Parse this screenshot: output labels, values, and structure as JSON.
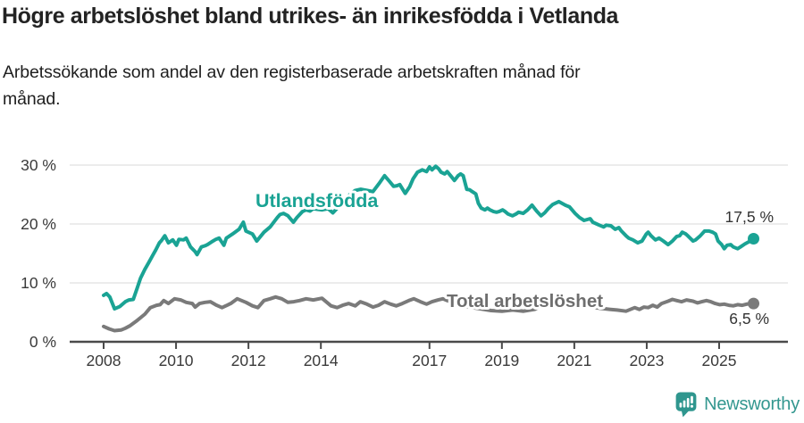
{
  "header": {
    "title": "Högre arbetslöshet bland utrikes- än inrikesfödda i Vetlanda",
    "subtitle": "Arbetssökande som andel av den registerbaserade arbetskraften månad för månad."
  },
  "chart_data": {
    "type": "line",
    "title": "Högre arbetslöshet bland utrikes- än inrikesfödda i Vetlanda",
    "subtitle": "Arbetssökande som andel av den registerbaserade arbetskraften månad för månad.",
    "grid": true,
    "x_axis": {
      "ticks": [
        2008,
        2010,
        2012,
        2014,
        2017,
        2019,
        2021,
        2023,
        2025
      ],
      "labels": [
        "2008",
        "2010",
        "2012",
        "2014",
        "2017",
        "2019",
        "2021",
        "2023",
        "2025"
      ],
      "range": [
        2007.7,
        2026.2
      ]
    },
    "y_axis": {
      "ticks": [
        0,
        10,
        20,
        30
      ],
      "labels": [
        "0 %",
        "10 %",
        "20 %",
        "30 %"
      ],
      "range": [
        0,
        31
      ]
    },
    "series": [
      {
        "name": "Utlandsfödda",
        "color": "#1aa394",
        "label_color": "#1aa394",
        "end_label": "17,5 %",
        "end_value": 17.5,
        "points": [
          [
            2008.0,
            7.9
          ],
          [
            2008.08,
            8.2
          ],
          [
            2008.17,
            7.6
          ],
          [
            2008.3,
            5.6
          ],
          [
            2008.45,
            6.0
          ],
          [
            2008.6,
            6.8
          ],
          [
            2008.7,
            7.1
          ],
          [
            2008.82,
            7.2
          ],
          [
            2008.92,
            9.0
          ],
          [
            2009.02,
            10.8
          ],
          [
            2009.14,
            12.3
          ],
          [
            2009.25,
            13.5
          ],
          [
            2009.34,
            14.5
          ],
          [
            2009.44,
            15.6
          ],
          [
            2009.54,
            16.8
          ],
          [
            2009.6,
            17.2
          ],
          [
            2009.69,
            18.0
          ],
          [
            2009.79,
            16.8
          ],
          [
            2009.91,
            17.3
          ],
          [
            2010.01,
            16.4
          ],
          [
            2010.08,
            17.4
          ],
          [
            2010.21,
            17.3
          ],
          [
            2010.28,
            17.6
          ],
          [
            2010.4,
            16.1
          ],
          [
            2010.53,
            15.3
          ],
          [
            2010.58,
            14.8
          ],
          [
            2010.7,
            16.1
          ],
          [
            2010.8,
            16.3
          ],
          [
            2010.87,
            16.5
          ],
          [
            2011.02,
            17.1
          ],
          [
            2011.1,
            17.4
          ],
          [
            2011.19,
            17.6
          ],
          [
            2011.32,
            16.4
          ],
          [
            2011.39,
            17.6
          ],
          [
            2011.56,
            18.3
          ],
          [
            2011.74,
            19.1
          ],
          [
            2011.86,
            20.3
          ],
          [
            2011.93,
            18.8
          ],
          [
            2012.11,
            18.3
          ],
          [
            2012.23,
            17.1
          ],
          [
            2012.43,
            18.6
          ],
          [
            2012.6,
            19.5
          ],
          [
            2012.8,
            21.1
          ],
          [
            2012.87,
            21.6
          ],
          [
            2012.97,
            21.8
          ],
          [
            2013.09,
            21.4
          ],
          [
            2013.24,
            20.3
          ],
          [
            2013.34,
            21.1
          ],
          [
            2013.49,
            22.1
          ],
          [
            2013.59,
            22.4
          ],
          [
            2013.7,
            22.2
          ],
          [
            2013.79,
            22.6
          ],
          [
            2013.9,
            22.5
          ],
          [
            2014.03,
            22.4
          ],
          [
            2014.2,
            22.6
          ],
          [
            2014.33,
            21.9
          ],
          [
            2014.5,
            23.0
          ],
          [
            2014.65,
            24.0
          ],
          [
            2014.8,
            25.0
          ],
          [
            2014.95,
            25.7
          ],
          [
            2015.1,
            25.9
          ],
          [
            2015.27,
            25.7
          ],
          [
            2015.44,
            25.5
          ],
          [
            2015.6,
            26.8
          ],
          [
            2015.76,
            28.2
          ],
          [
            2015.9,
            27.2
          ],
          [
            2016.01,
            26.4
          ],
          [
            2016.1,
            26.5
          ],
          [
            2016.18,
            26.7
          ],
          [
            2016.33,
            25.2
          ],
          [
            2016.45,
            26.3
          ],
          [
            2016.55,
            27.7
          ],
          [
            2016.67,
            28.8
          ],
          [
            2016.8,
            29.2
          ],
          [
            2016.92,
            28.9
          ],
          [
            2017.0,
            29.7
          ],
          [
            2017.07,
            29.2
          ],
          [
            2017.17,
            29.8
          ],
          [
            2017.25,
            29.4
          ],
          [
            2017.32,
            28.8
          ],
          [
            2017.42,
            28.5
          ],
          [
            2017.49,
            28.9
          ],
          [
            2017.61,
            28.0
          ],
          [
            2017.69,
            27.4
          ],
          [
            2017.79,
            28.2
          ],
          [
            2017.86,
            28.5
          ],
          [
            2017.93,
            28.2
          ],
          [
            2018.03,
            25.9
          ],
          [
            2018.11,
            25.8
          ],
          [
            2018.18,
            25.5
          ],
          [
            2018.28,
            25.1
          ],
          [
            2018.35,
            23.5
          ],
          [
            2018.43,
            22.7
          ],
          [
            2018.53,
            22.4
          ],
          [
            2018.6,
            22.7
          ],
          [
            2018.67,
            22.4
          ],
          [
            2018.77,
            22.1
          ],
          [
            2018.85,
            22.0
          ],
          [
            2018.92,
            22.1
          ],
          [
            2019.02,
            22.4
          ],
          [
            2019.09,
            22.1
          ],
          [
            2019.17,
            21.7
          ],
          [
            2019.29,
            21.4
          ],
          [
            2019.39,
            21.7
          ],
          [
            2019.46,
            22.0
          ],
          [
            2019.59,
            21.8
          ],
          [
            2019.71,
            22.4
          ],
          [
            2019.83,
            23.2
          ],
          [
            2019.96,
            22.2
          ],
          [
            2020.08,
            21.4
          ],
          [
            2020.18,
            21.9
          ],
          [
            2020.28,
            22.6
          ],
          [
            2020.4,
            23.3
          ],
          [
            2020.57,
            23.8
          ],
          [
            2020.75,
            23.2
          ],
          [
            2020.87,
            22.9
          ],
          [
            2021.02,
            21.8
          ],
          [
            2021.14,
            21.1
          ],
          [
            2021.27,
            20.6
          ],
          [
            2021.44,
            20.9
          ],
          [
            2021.51,
            20.3
          ],
          [
            2021.69,
            19.8
          ],
          [
            2021.81,
            19.5
          ],
          [
            2021.88,
            19.8
          ],
          [
            2022.01,
            19.7
          ],
          [
            2022.13,
            19.1
          ],
          [
            2022.23,
            19.4
          ],
          [
            2022.3,
            18.8
          ],
          [
            2022.43,
            18.0
          ],
          [
            2022.5,
            17.6
          ],
          [
            2022.62,
            17.3
          ],
          [
            2022.75,
            16.8
          ],
          [
            2022.87,
            17.1
          ],
          [
            2022.99,
            18.3
          ],
          [
            2023.04,
            18.6
          ],
          [
            2023.12,
            18.0
          ],
          [
            2023.24,
            17.3
          ],
          [
            2023.34,
            17.6
          ],
          [
            2023.46,
            17.1
          ],
          [
            2023.59,
            16.5
          ],
          [
            2023.71,
            17.1
          ],
          [
            2023.83,
            17.9
          ],
          [
            2023.91,
            18.0
          ],
          [
            2023.98,
            18.6
          ],
          [
            2024.08,
            18.3
          ],
          [
            2024.15,
            17.9
          ],
          [
            2024.28,
            17.1
          ],
          [
            2024.35,
            17.3
          ],
          [
            2024.48,
            18.0
          ],
          [
            2024.6,
            18.8
          ],
          [
            2024.72,
            18.8
          ],
          [
            2024.82,
            18.6
          ],
          [
            2024.9,
            18.3
          ],
          [
            2024.97,
            17.1
          ],
          [
            2025.07,
            16.5
          ],
          [
            2025.14,
            15.8
          ],
          [
            2025.22,
            16.4
          ],
          [
            2025.32,
            16.5
          ],
          [
            2025.39,
            16.1
          ],
          [
            2025.51,
            15.8
          ],
          [
            2025.59,
            16.1
          ],
          [
            2025.71,
            16.6
          ],
          [
            2025.83,
            17.0
          ],
          [
            2025.95,
            17.5
          ]
        ]
      },
      {
        "name": "Total arbetslöshet",
        "color": "#7a7a7a",
        "label_color": "#6e6e6e",
        "end_label": "6,5 %",
        "end_value": 6.5,
        "points": [
          [
            2008.0,
            2.6
          ],
          [
            2008.15,
            2.2
          ],
          [
            2008.3,
            1.9
          ],
          [
            2008.48,
            2.0
          ],
          [
            2008.6,
            2.3
          ],
          [
            2008.72,
            2.7
          ],
          [
            2008.9,
            3.5
          ],
          [
            2009.14,
            4.7
          ],
          [
            2009.29,
            5.8
          ],
          [
            2009.46,
            6.2
          ],
          [
            2009.56,
            6.3
          ],
          [
            2009.66,
            7.0
          ],
          [
            2009.79,
            6.5
          ],
          [
            2009.96,
            7.3
          ],
          [
            2010.13,
            7.1
          ],
          [
            2010.28,
            6.7
          ],
          [
            2010.45,
            6.5
          ],
          [
            2010.53,
            5.9
          ],
          [
            2010.65,
            6.5
          ],
          [
            2010.8,
            6.7
          ],
          [
            2010.95,
            6.8
          ],
          [
            2011.12,
            6.2
          ],
          [
            2011.27,
            5.8
          ],
          [
            2011.51,
            6.5
          ],
          [
            2011.69,
            7.3
          ],
          [
            2011.93,
            6.7
          ],
          [
            2012.11,
            6.1
          ],
          [
            2012.26,
            5.8
          ],
          [
            2012.43,
            7.0
          ],
          [
            2012.6,
            7.3
          ],
          [
            2012.75,
            7.6
          ],
          [
            2012.92,
            7.3
          ],
          [
            2013.09,
            6.7
          ],
          [
            2013.25,
            6.8
          ],
          [
            2013.41,
            7.0
          ],
          [
            2013.59,
            7.3
          ],
          [
            2013.79,
            7.1
          ],
          [
            2014.03,
            7.4
          ],
          [
            2014.28,
            6.1
          ],
          [
            2014.45,
            5.8
          ],
          [
            2014.6,
            6.2
          ],
          [
            2014.77,
            6.5
          ],
          [
            2014.95,
            6.1
          ],
          [
            2015.09,
            6.8
          ],
          [
            2015.27,
            6.4
          ],
          [
            2015.44,
            5.9
          ],
          [
            2015.59,
            6.2
          ],
          [
            2015.76,
            6.8
          ],
          [
            2015.93,
            6.4
          ],
          [
            2016.08,
            6.1
          ],
          [
            2016.25,
            6.5
          ],
          [
            2016.43,
            7.0
          ],
          [
            2016.57,
            7.3
          ],
          [
            2016.75,
            6.8
          ],
          [
            2016.92,
            6.4
          ],
          [
            2017.07,
            6.8
          ],
          [
            2017.24,
            7.1
          ],
          [
            2017.37,
            7.3
          ],
          [
            2017.49,
            7.0
          ],
          [
            2017.8,
            6.3
          ],
          [
            2018.1,
            5.9
          ],
          [
            2018.4,
            5.6
          ],
          [
            2018.7,
            5.3
          ],
          [
            2019.0,
            5.2
          ],
          [
            2019.3,
            5.4
          ],
          [
            2019.6,
            5.2
          ],
          [
            2019.9,
            5.5
          ],
          [
            2020.2,
            6.5
          ],
          [
            2020.5,
            7.0
          ],
          [
            2020.8,
            6.8
          ],
          [
            2021.1,
            6.4
          ],
          [
            2021.4,
            6.0
          ],
          [
            2021.7,
            5.7
          ],
          [
            2022.0,
            5.5
          ],
          [
            2022.18,
            5.4
          ],
          [
            2022.43,
            5.2
          ],
          [
            2022.67,
            5.8
          ],
          [
            2022.8,
            5.5
          ],
          [
            2022.92,
            5.9
          ],
          [
            2023.04,
            5.8
          ],
          [
            2023.17,
            6.2
          ],
          [
            2023.29,
            5.9
          ],
          [
            2023.41,
            6.5
          ],
          [
            2023.59,
            6.9
          ],
          [
            2023.71,
            7.2
          ],
          [
            2023.83,
            7.0
          ],
          [
            2023.96,
            6.8
          ],
          [
            2024.1,
            7.1
          ],
          [
            2024.28,
            6.9
          ],
          [
            2024.4,
            6.6
          ],
          [
            2024.52,
            6.8
          ],
          [
            2024.65,
            7.0
          ],
          [
            2024.77,
            6.8
          ],
          [
            2024.89,
            6.5
          ],
          [
            2025.02,
            6.3
          ],
          [
            2025.14,
            6.4
          ],
          [
            2025.27,
            6.2
          ],
          [
            2025.39,
            6.1
          ],
          [
            2025.51,
            6.3
          ],
          [
            2025.64,
            6.2
          ],
          [
            2025.76,
            6.4
          ],
          [
            2025.95,
            6.5
          ]
        ]
      }
    ],
    "legend_position": "inline-labels"
  },
  "footer": {
    "brand": "Newsworthy",
    "brand_color": "#33978f",
    "icon_color": "#2f968e"
  }
}
